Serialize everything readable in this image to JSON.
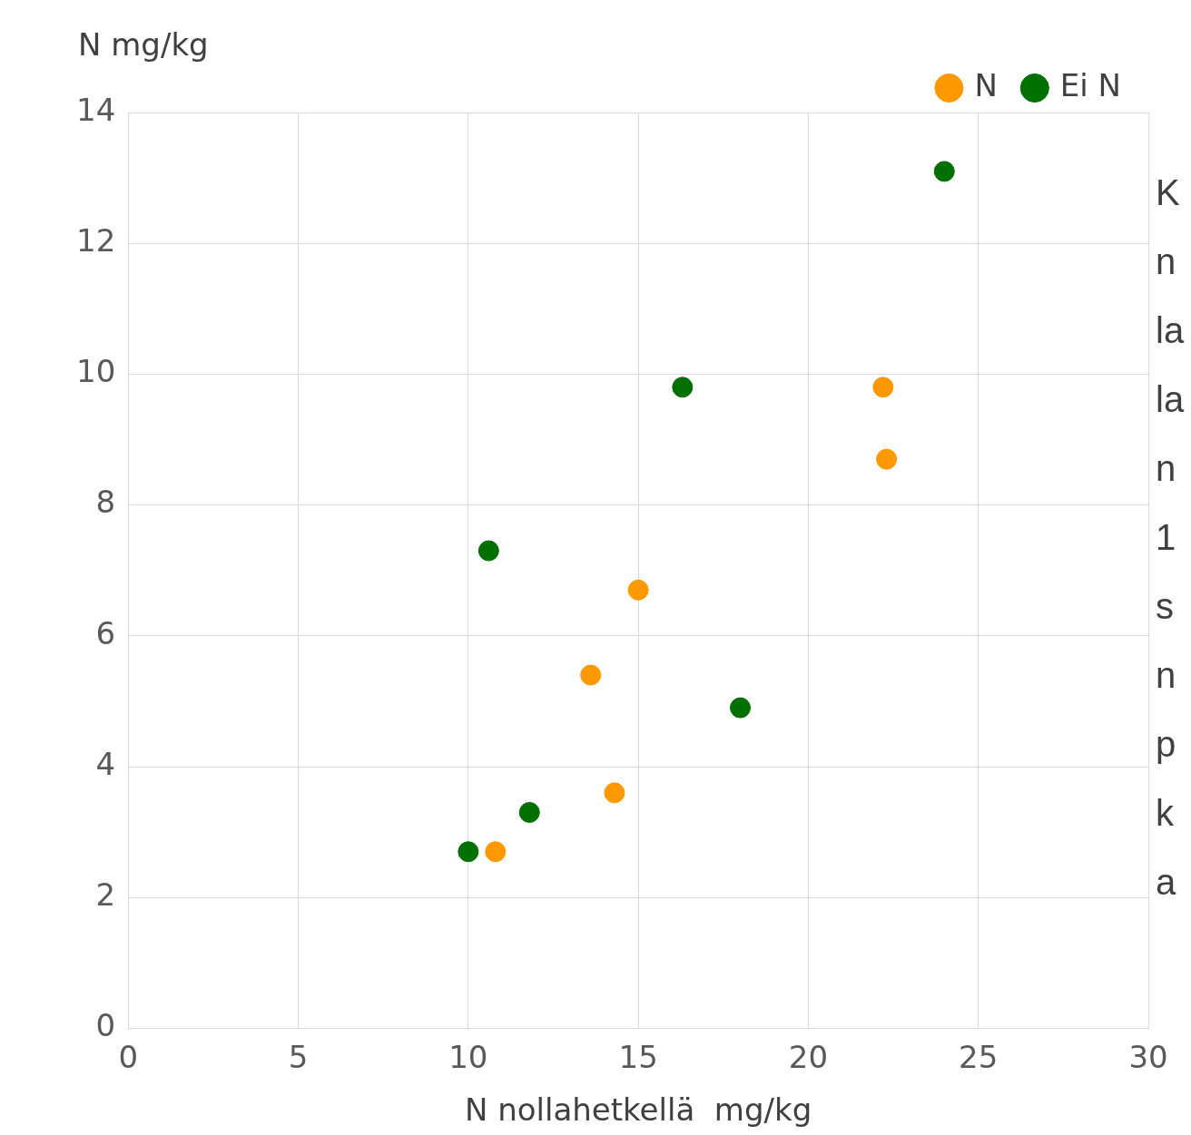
{
  "chart_data": {
    "type": "scatter",
    "ylabel": "N mg/kg",
    "xlabel": "N nollahetkellä  mg/kg",
    "xlim": [
      0,
      30
    ],
    "xticks": [
      0,
      5,
      10,
      15,
      20,
      25,
      30
    ],
    "ylim": [
      0,
      14
    ],
    "yticks": [
      0,
      2,
      4,
      6,
      8,
      10,
      12,
      14
    ],
    "grid": true,
    "legend": "top right",
    "marker": "circle",
    "annotations": [
      "K\nn\nla\nla\nn\n1\ns\nn\np\nk\na"
    ],
    "series": [
      {
        "name": "N",
        "color": "#ff9900",
        "x": [
          22.2,
          22.3,
          15.0,
          13.6,
          14.3,
          10.8
        ],
        "values": [
          9.8,
          8.7,
          6.7,
          5.4,
          3.6,
          2.7
        ]
      },
      {
        "name": "Ei N",
        "color": "#007000",
        "x": [
          24.0,
          16.3,
          10.6,
          18.0,
          11.8,
          10.0
        ],
        "values": [
          13.1,
          9.8,
          7.3,
          4.9,
          3.3,
          2.7
        ]
      }
    ]
  }
}
